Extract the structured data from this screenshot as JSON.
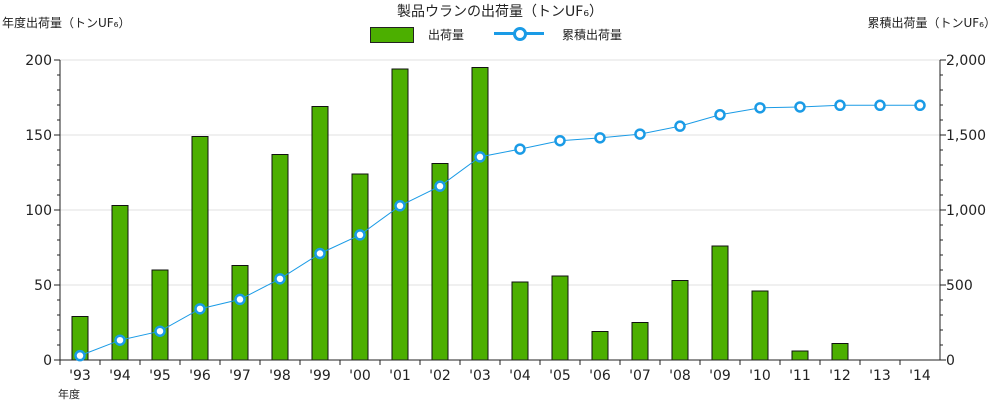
{
  "chart_data": {
    "type": "bar+line",
    "title": "製品ウランの出荷量（トンUF₆）",
    "ylabel_left": "年度出荷量（トンUF₆）",
    "ylabel_right": "累積出荷量（トンUF₆）",
    "xlabel": "年度",
    "categories": [
      "'93",
      "'94",
      "'95",
      "'96",
      "'97",
      "'98",
      "'99",
      "'00",
      "'01",
      "'02",
      "'03",
      "'04",
      "'05",
      "'06",
      "'07",
      "'08",
      "'09",
      "'10",
      "'11",
      "'12",
      "'13",
      "'14"
    ],
    "series": [
      {
        "name": "出荷量",
        "type": "bar",
        "axis": "left",
        "color": "#4caf00",
        "values": [
          29,
          103,
          60,
          149,
          63,
          137,
          169,
          124,
          194,
          131,
          195,
          52,
          56,
          19,
          25,
          53,
          76,
          46,
          6,
          11,
          0,
          0
        ]
      },
      {
        "name": "累積出荷量",
        "type": "line",
        "axis": "right",
        "color": "#1a9be6",
        "values": [
          29,
          132,
          192,
          341,
          404,
          541,
          710,
          834,
          1028,
          1159,
          1354,
          1406,
          1462,
          1481,
          1506,
          1559,
          1635,
          1681,
          1687,
          1698,
          1698,
          1698
        ]
      }
    ],
    "ylim_left": [
      0,
      200
    ],
    "yticks_left": [
      "0",
      "50",
      "100",
      "150",
      "200"
    ],
    "ylim_right": [
      0,
      2000
    ],
    "yticks_right": [
      "0",
      "500",
      "1,000",
      "1,500",
      "2,000"
    ],
    "grid": true,
    "legend": "top-center"
  }
}
